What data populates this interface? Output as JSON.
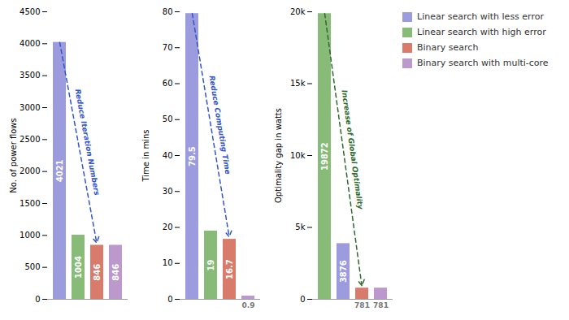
{
  "chart_data": [
    {
      "type": "bar",
      "categories": [
        "Linear search with less error",
        "Linear search with high error",
        "Binary search",
        "Binary search with multi-core"
      ],
      "values": [
        4021,
        1004,
        846,
        846
      ],
      "colors": [
        "#9b9bdd",
        "#88bb77",
        "#d97b6a",
        "#bb99cc"
      ],
      "ylabel": "No. of power flows",
      "ylim": [
        0,
        4500
      ],
      "yticks": [
        0,
        500,
        1000,
        1500,
        2000,
        2500,
        3000,
        3500,
        4000,
        4500
      ],
      "data_labels": true,
      "tick_labels": "y",
      "legend": "right",
      "annotations": [
        {
          "text": "Reduce Iteration Numbers",
          "color": "#3355cc"
        }
      ]
    },
    {
      "type": "bar",
      "categories": [
        "Linear search with less error",
        "Linear search with high error",
        "Binary search",
        "Binary search with multi-core"
      ],
      "values": [
        79.5,
        19,
        16.7,
        0.9
      ],
      "colors": [
        "#9b9bdd",
        "#88bb77",
        "#d97b6a",
        "#bb99cc"
      ],
      "ylabel": "Time in mins",
      "ylim": [
        0,
        80
      ],
      "yticks": [
        0,
        10,
        20,
        30,
        40,
        50,
        60,
        70,
        80
      ],
      "data_labels": true,
      "tick_labels": "y",
      "annotations": [
        {
          "text": "Reduce Computing Time",
          "color": "#3355cc"
        }
      ]
    },
    {
      "type": "bar",
      "categories": [
        "Linear search with high error",
        "Linear search with less error",
        "Binary search",
        "Binary search with multi-core"
      ],
      "values": [
        19872,
        3876,
        781,
        781
      ],
      "colors": [
        "#88bb77",
        "#9b9bdd",
        "#d97b6a",
        "#bb99cc"
      ],
      "ylabel": "Optimality gap in watts",
      "ylim": [
        0,
        20000
      ],
      "yticks": [
        0,
        {
          "value": 5000,
          "label": "5k"
        },
        {
          "value": 10000,
          "label": "10k"
        },
        {
          "value": 15000,
          "label": "15k"
        },
        {
          "value": 20000,
          "label": "20k"
        }
      ],
      "data_labels": true,
      "tick_labels": "y",
      "annotations": [
        {
          "text": "Increase of Global Optimality",
          "color": "#2d6a2d"
        }
      ]
    }
  ]
}
